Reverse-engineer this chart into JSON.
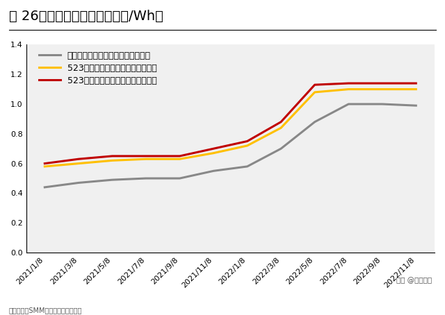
{
  "title": "图 26：动力电芯价格情况（元/Wh）",
  "x_labels": [
    "2021/1/8",
    "2021/3/8",
    "2021/5/8",
    "2021/7/8",
    "2021/9/8",
    "2021/11/8",
    "2022/1/8",
    "2022/3/8",
    "2022/5/8",
    "2022/7/8",
    "2022/9/8",
    "2022/11/8"
  ],
  "series": [
    {
      "name": "方形磷酸铁锂电芯（动力型）（周）",
      "color": "#888888",
      "values": [
        0.44,
        0.47,
        0.49,
        0.5,
        0.5,
        0.55,
        0.58,
        0.7,
        0.88,
        1.0,
        1.0,
        0.99
      ]
    },
    {
      "name": "523方形三元电芯（动力型）（周）",
      "color": "#FFC000",
      "values": [
        0.58,
        0.6,
        0.62,
        0.63,
        0.63,
        0.67,
        0.72,
        0.84,
        1.08,
        1.1,
        1.1,
        1.1
      ]
    },
    {
      "name": "523软包三元电芯（动力型）（周）",
      "color": "#C00000",
      "values": [
        0.6,
        0.63,
        0.65,
        0.65,
        0.65,
        0.7,
        0.75,
        0.88,
        1.13,
        1.14,
        1.14,
        1.14
      ]
    }
  ],
  "ylim": [
    0.0,
    1.4
  ],
  "yticks": [
    0.0,
    0.2,
    0.4,
    0.6,
    0.8,
    1.0,
    1.2,
    1.4
  ],
  "bg_color": "#ffffff",
  "plot_bg_color": "#f0f0f0",
  "watermark": "头条 @未来智库",
  "footer": "资料来源：SMM，东证证券研究所等",
  "line_width": 2.2,
  "title_fontsize": 14,
  "legend_fontsize": 9,
  "tick_fontsize": 8
}
